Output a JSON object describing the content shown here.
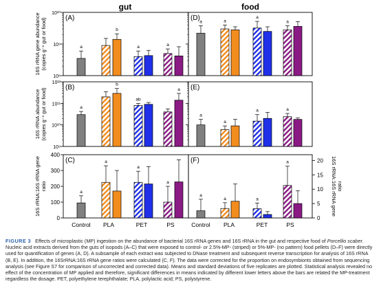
{
  "figure": {
    "col_titles": [
      "gut",
      "food"
    ],
    "panel_letters": [
      "(A)",
      "(D)",
      "(B)",
      "(E)",
      "(C)",
      "(F)"
    ],
    "ylabels": {
      "A": [
        "16S rRNA gene abundance",
        "(copies g⁻¹ gut or food)"
      ],
      "B": [
        "16S rRNA abundance",
        "(copies g⁻¹ gut or food)"
      ],
      "C": [
        "16S rRNA:16S rRNA gene",
        "ratio"
      ],
      "F_right": [
        "16S rRNA:16S rRNA gene",
        "ratio"
      ]
    },
    "xcategories": [
      "Control",
      "PLA",
      "PET",
      "PS"
    ]
  },
  "caption": {
    "label": "FIGURE 3",
    "parts": [
      "Effects of microplastic (MP) ingestion on the abundance of bacterial 16S rRNA genes and 16S rRNA in the gut and respective food of ",
      "Porcellio scaber",
      ". Nucleic acid extracts derived from the guts of isopods (A–C) that were exposed to control- or 2.5%-MP- (striped) or 5%-MP- (no pattern) food pellets (D–F) were directly used for quantification of genes (A, D). A subsample of each extract was subjected to DNase treatment and subsequent reverse transcription for analysis of 16S rRNA (B, E). In addition, the 16SrRNA:16S rRNA gene ratios were calculated (C, F). The data were corrected for the proportion on endosymbionts obtained from sequencing analysis (see Figure S7 for comparison of uncorrected and corrected data). Means and standard deviations of five replicates are plotted. Statistical analysis revealed no effect of the concentration of MP applied and therefore, significant differences in means indicated by different lower letters above the bars are related the MP-treatment regardless the dosage. PET, polyethylene terephthalate; PLA, polylactic acid; PS, polystyrene."
    ]
  },
  "colors": {
    "Control": "#808080",
    "PLA": "#f28c1e",
    "PET": "#2030e8",
    "PS": "#8a1a84"
  },
  "chart_data": [
    {
      "type": "bar",
      "panel": "A",
      "column": "gut",
      "scale": "log",
      "ylim": [
        100000000.0,
        10000000000.0
      ],
      "ytick_labels": [
        "10⁸",
        "10⁹",
        "10¹⁰"
      ],
      "categories": [
        "Control",
        "PLA",
        "PET",
        "PS"
      ],
      "bars": [
        {
          "group": "Control",
          "pattern": "solid",
          "value": 350000000.0,
          "err": 250000000.0,
          "letter": "a"
        },
        {
          "group": "PLA",
          "pattern": "striped",
          "value": 900000000.0,
          "err": 600000000.0,
          "letter": ""
        },
        {
          "group": "PLA",
          "pattern": "solid",
          "value": 1400000000.0,
          "err": 700000000.0,
          "letter": "b"
        },
        {
          "group": "PET",
          "pattern": "striped",
          "value": 400000000.0,
          "err": 200000000.0,
          "letter": "a"
        },
        {
          "group": "PET",
          "pattern": "solid",
          "value": 430000000.0,
          "err": 200000000.0,
          "letter": ""
        },
        {
          "group": "PS",
          "pattern": "striped",
          "value": 500000000.0,
          "err": 200000000.0,
          "letter": "a"
        },
        {
          "group": "PS",
          "pattern": "solid",
          "value": 420000000.0,
          "err": 400000000.0,
          "letter": ""
        }
      ]
    },
    {
      "type": "bar",
      "panel": "D",
      "column": "food",
      "scale": "log",
      "ylim": [
        100000000.0,
        10000000000.0
      ],
      "categories": [
        "Control",
        "PLA",
        "PET",
        "PS"
      ],
      "bars": [
        {
          "group": "Control",
          "pattern": "solid",
          "value": 2200000000.0,
          "err": 1600000000.0,
          "letter": "a"
        },
        {
          "group": "PLA",
          "pattern": "striped",
          "value": 3000000000.0,
          "err": 1000000000.0,
          "letter": "a"
        },
        {
          "group": "PLA",
          "pattern": "solid",
          "value": 2800000000.0,
          "err": 700000000.0,
          "letter": ""
        },
        {
          "group": "PET",
          "pattern": "striped",
          "value": 3200000000.0,
          "err": 2000000000.0,
          "letter": "a"
        },
        {
          "group": "PET",
          "pattern": "solid",
          "value": 2500000000.0,
          "err": 1000000000.0,
          "letter": ""
        },
        {
          "group": "PS",
          "pattern": "striped",
          "value": 2800000000.0,
          "err": 1000000000.0,
          "letter": "a"
        },
        {
          "group": "PS",
          "pattern": "solid",
          "value": 3600000000.0,
          "err": 1500000000.0,
          "letter": ""
        }
      ]
    },
    {
      "type": "bar",
      "panel": "B",
      "column": "gut",
      "scale": "log",
      "ylim": [
        1000000000.0,
        1000000000000.0
      ],
      "ytick_labels": [
        "10⁹",
        "10¹⁰",
        "10¹¹",
        "10¹²"
      ],
      "categories": [
        "Control",
        "PLA",
        "PET",
        "PS"
      ],
      "bars": [
        {
          "group": "Control",
          "pattern": "solid",
          "value": 30000000000.0,
          "err": 12000000000.0,
          "letter": "a"
        },
        {
          "group": "PLA",
          "pattern": "striped",
          "value": 200000000000.0,
          "err": 150000000000.0,
          "letter": ""
        },
        {
          "group": "PLA",
          "pattern": "solid",
          "value": 290000000000.0,
          "err": 200000000000.0,
          "letter": "b"
        },
        {
          "group": "PET",
          "pattern": "striped",
          "value": 80000000000.0,
          "err": 20000000000.0,
          "letter": "ab"
        },
        {
          "group": "PET",
          "pattern": "solid",
          "value": 90000000000.0,
          "err": 20000000000.0,
          "letter": ""
        },
        {
          "group": "PS",
          "pattern": "striped",
          "value": 40000000000.0,
          "err": 15000000000.0,
          "letter": ""
        },
        {
          "group": "PS",
          "pattern": "solid",
          "value": 140000000000.0,
          "err": 150000000000.0,
          "letter": "a"
        }
      ]
    },
    {
      "type": "bar",
      "panel": "E",
      "column": "food",
      "scale": "log",
      "ylim": [
        1000000000.0,
        1000000000000.0
      ],
      "categories": [
        "Control",
        "PLA",
        "PET",
        "PS"
      ],
      "bars": [
        {
          "group": "Control",
          "pattern": "solid",
          "value": 10000000000.0,
          "err": 8000000000.0,
          "letter": "a"
        },
        {
          "group": "PLA",
          "pattern": "striped",
          "value": 6000000000.0,
          "err": 3000000000.0,
          "letter": "a"
        },
        {
          "group": "PLA",
          "pattern": "solid",
          "value": 9000000000.0,
          "err": 9000000000.0,
          "letter": ""
        },
        {
          "group": "PET",
          "pattern": "striped",
          "value": 15000000000.0,
          "err": 15000000000.0,
          "letter": "a"
        },
        {
          "group": "PET",
          "pattern": "solid",
          "value": 20000000000.0,
          "err": 18000000000.0,
          "letter": ""
        },
        {
          "group": "PS",
          "pattern": "striped",
          "value": 24000000000.0,
          "err": 10000000000.0,
          "letter": "a"
        },
        {
          "group": "PS",
          "pattern": "solid",
          "value": 18000000000.0,
          "err": 3000000000.0,
          "letter": ""
        }
      ]
    },
    {
      "type": "bar",
      "panel": "C",
      "column": "gut",
      "scale": "linear",
      "ylim": [
        0,
        400
      ],
      "yticks": [
        0,
        100,
        200,
        300,
        400
      ],
      "categories": [
        "Control",
        "PLA",
        "PET",
        "PS"
      ],
      "bars": [
        {
          "group": "Control",
          "pattern": "solid",
          "value": 95,
          "err": 45,
          "letter": "a"
        },
        {
          "group": "PLA",
          "pattern": "striped",
          "value": 225,
          "err": 105,
          "letter": "a"
        },
        {
          "group": "PLA",
          "pattern": "solid",
          "value": 170,
          "err": 130,
          "letter": ""
        },
        {
          "group": "PET",
          "pattern": "striped",
          "value": 225,
          "err": 70,
          "letter": "a"
        },
        {
          "group": "PET",
          "pattern": "solid",
          "value": 215,
          "err": 110,
          "letter": ""
        },
        {
          "group": "PS",
          "pattern": "striped",
          "value": 100,
          "err": 100,
          "letter": "a"
        },
        {
          "group": "PS",
          "pattern": "solid",
          "value": 228,
          "err": 140,
          "letter": ""
        }
      ]
    },
    {
      "type": "bar",
      "panel": "F",
      "column": "food",
      "scale": "linear",
      "ylim": [
        0,
        22
      ],
      "yticks": [
        0,
        5,
        10,
        15,
        20
      ],
      "yaxis_side": "right",
      "categories": [
        "Control",
        "PLA",
        "PET",
        "PS"
      ],
      "bars": [
        {
          "group": "Control",
          "pattern": "solid",
          "value": 2.5,
          "err": 4,
          "letter": "a"
        },
        {
          "group": "PLA",
          "pattern": "striped",
          "value": 3.3,
          "err": 2,
          "letter": "a"
        },
        {
          "group": "PLA",
          "pattern": "solid",
          "value": 5.8,
          "err": 6,
          "letter": ""
        },
        {
          "group": "PET",
          "pattern": "striped",
          "value": 3.2,
          "err": 2,
          "letter": "a"
        },
        {
          "group": "PET",
          "pattern": "solid",
          "value": 1.2,
          "err": 1,
          "letter": ""
        },
        {
          "group": "PS",
          "pattern": "striped",
          "value": 11.3,
          "err": 6.7,
          "letter": "a"
        },
        {
          "group": "PS",
          "pattern": "solid",
          "value": 5,
          "err": 4.5,
          "letter": ""
        }
      ]
    }
  ]
}
